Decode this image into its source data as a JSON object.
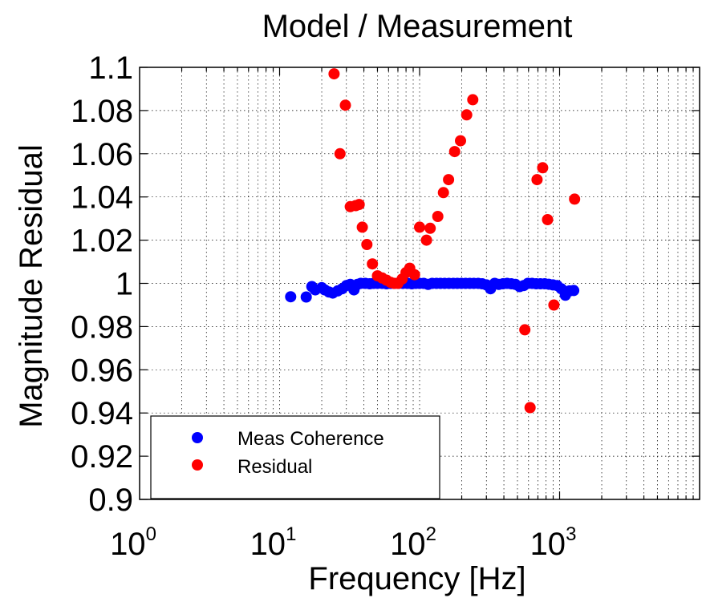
{
  "chart_data": {
    "type": "scatter",
    "title": "Model / Measurement",
    "xlabel": "Frequency [Hz]",
    "ylabel": "Magnitude Residual",
    "x_scale": "log",
    "xlim": [
      1,
      10000
    ],
    "ylim": [
      0.9,
      1.1
    ],
    "x_ticks": [
      {
        "base": "10",
        "exp": "0",
        "value": 1
      },
      {
        "base": "10",
        "exp": "1",
        "value": 10
      },
      {
        "base": "10",
        "exp": "2",
        "value": 100
      },
      {
        "base": "10",
        "exp": "3",
        "value": 1000
      }
    ],
    "y_ticks": [
      "0.9",
      "0.92",
      "0.94",
      "0.96",
      "0.98",
      "1",
      "1.02",
      "1.04",
      "1.06",
      "1.08",
      "1.1"
    ],
    "grid": true,
    "legend_position": "bottom-left",
    "series": [
      {
        "name": "Meas Coherence",
        "color": "#0000ff",
        "points": [
          [
            12,
            0.9938
          ],
          [
            15.5,
            0.9937
          ],
          [
            17,
            0.9985
          ],
          [
            18,
            0.997
          ],
          [
            20,
            0.998
          ],
          [
            21,
            0.997
          ],
          [
            22.5,
            0.996
          ],
          [
            24,
            0.9955
          ],
          [
            26,
            0.9965
          ],
          [
            28,
            0.9975
          ],
          [
            30,
            0.999
          ],
          [
            32,
            0.9995
          ],
          [
            34,
            0.997
          ],
          [
            36,
            0.9995
          ],
          [
            38,
            1.0
          ],
          [
            41,
            1.0
          ],
          [
            44,
            0.9998
          ],
          [
            47,
            1.0
          ],
          [
            50,
            1.0
          ],
          [
            54,
            1.0
          ],
          [
            58,
            0.9998
          ],
          [
            62,
            1.0
          ],
          [
            66,
            1.0
          ],
          [
            71,
            1.0
          ],
          [
            76,
            1.0
          ],
          [
            82,
            1.0
          ],
          [
            88,
            0.9998
          ],
          [
            94,
            1.0
          ],
          [
            100,
            1.0
          ],
          [
            107,
            1.0
          ],
          [
            115,
            0.9995
          ],
          [
            123,
            1.0
          ],
          [
            132,
            1.0
          ],
          [
            141,
            1.0
          ],
          [
            151,
            1.0
          ],
          [
            162,
            1.0
          ],
          [
            174,
            1.0
          ],
          [
            186,
            1.0
          ],
          [
            199,
            1.0
          ],
          [
            213,
            1.0
          ],
          [
            228,
            1.0
          ],
          [
            244,
            1.0
          ],
          [
            262,
            1.0
          ],
          [
            280,
            0.9998
          ],
          [
            300,
            0.9993
          ],
          [
            321,
            0.9975
          ],
          [
            344,
            1.0
          ],
          [
            368,
            0.9995
          ],
          [
            394,
            0.9998
          ],
          [
            422,
            1.0
          ],
          [
            452,
            0.9998
          ],
          [
            484,
            0.9995
          ],
          [
            518,
            0.9985
          ],
          [
            555,
            0.999
          ],
          [
            594,
            1.0
          ],
          [
            636,
            1.0
          ],
          [
            681,
            0.9998
          ],
          [
            730,
            0.9998
          ],
          [
            782,
            0.9998
          ],
          [
            837,
            0.9996
          ],
          [
            896,
            0.9993
          ],
          [
            960,
            0.999
          ],
          [
            1028,
            0.9975
          ],
          [
            1100,
            0.9945
          ],
          [
            1178,
            0.9965
          ],
          [
            1262,
            0.9967
          ]
        ]
      },
      {
        "name": "Residual",
        "color": "#ff0000",
        "points": [
          [
            24.5,
            1.097
          ],
          [
            27,
            1.06
          ],
          [
            29.5,
            1.0825
          ],
          [
            32,
            1.0355
          ],
          [
            35,
            1.036
          ],
          [
            37,
            1.0365
          ],
          [
            39,
            1.026
          ],
          [
            42,
            1.018
          ],
          [
            46,
            1.009
          ],
          [
            50,
            1.0035
          ],
          [
            54,
            1.0025
          ],
          [
            58,
            1.0015
          ],
          [
            62,
            1.0005
          ],
          [
            66,
            1.0
          ],
          [
            70,
            1.0
          ],
          [
            75,
            1.002
          ],
          [
            80,
            1.005
          ],
          [
            85,
            1.007
          ],
          [
            92,
            1.004
          ],
          [
            100,
            1.026
          ],
          [
            112,
            1.02
          ],
          [
            119,
            1.0255
          ],
          [
            135,
            1.031
          ],
          [
            148,
            1.042
          ],
          [
            161,
            1.048
          ],
          [
            178,
            1.061
          ],
          [
            196,
            1.066
          ],
          [
            217,
            1.078
          ],
          [
            240,
            1.085
          ],
          [
            565,
            0.9785
          ],
          [
            615,
            0.9425
          ],
          [
            690,
            1.048
          ],
          [
            757,
            1.0535
          ],
          [
            820,
            1.0295
          ],
          [
            910,
            0.99
          ],
          [
            1280,
            1.039
          ]
        ]
      }
    ]
  }
}
